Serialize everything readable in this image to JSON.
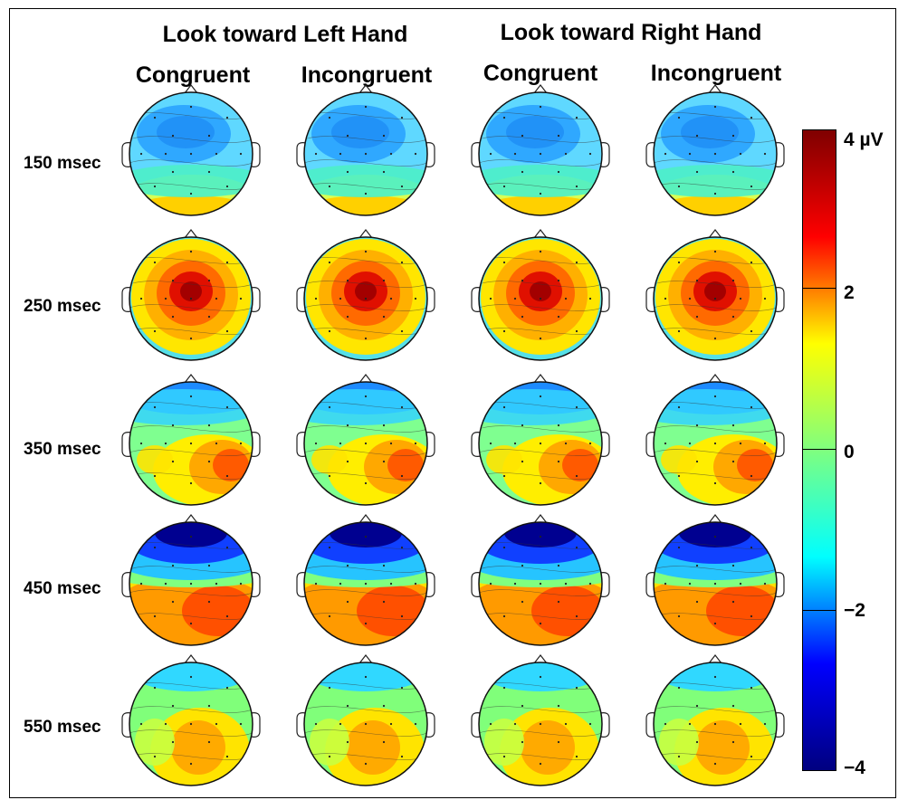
{
  "group_titles": [
    "Look toward Left Hand",
    "Look toward Right Hand"
  ],
  "column_titles": [
    "Congruent",
    "Incongruent",
    "Congruent",
    "Incongruent"
  ],
  "row_labels": [
    "150 msec",
    "250 msec",
    "350 msec",
    "450 msec",
    "550 msec"
  ],
  "colorbar": {
    "unit_label": "4 µV",
    "tick_labels": [
      "4 µV",
      "2",
      "0",
      "−2",
      "−4"
    ],
    "range": [
      -4,
      4
    ],
    "colormap": "jet",
    "stops": [
      "#00007f",
      "#0000ff",
      "#00ffff",
      "#7fff7f",
      "#ffff00",
      "#ff0000",
      "#7f0000"
    ]
  },
  "topomaps": [
    [
      "Left Hand Congruent 150 msec",
      "Left Hand Incongruent 150 msec",
      "Right Hand Congruent 150 msec",
      "Right Hand Incongruent 150 msec"
    ],
    [
      "Left Hand Congruent 250 msec",
      "Left Hand Incongruent 250 msec",
      "Right Hand Congruent 250 msec",
      "Right Hand Incongruent 250 msec"
    ],
    [
      "Left Hand Congruent 350 msec",
      "Left Hand Incongruent 350 msec",
      "Right Hand Congruent 350 msec",
      "Right Hand Incongruent 350 msec"
    ],
    [
      "Left Hand Congruent 450 msec",
      "Left Hand Incongruent 450 msec",
      "Right Hand Congruent 450 msec",
      "Right Hand Incongruent 450 msec"
    ],
    [
      "Left Hand Congruent 550 msec",
      "Left Hand Incongruent 550 msec",
      "Right Hand Congruent 550 msec",
      "Right Hand Incongruent 550 msec"
    ]
  ]
}
